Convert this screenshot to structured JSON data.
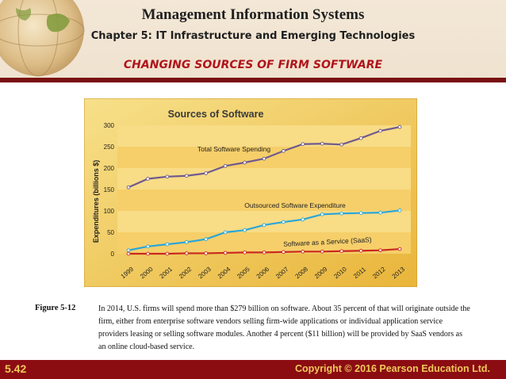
{
  "header": {
    "title": "Management Information Systems",
    "subtitle": "Chapter 5: IT Infrastructure and Emerging Technologies",
    "section_title": "CHANGING SOURCES OF FIRM SOFTWARE"
  },
  "colors": {
    "header_bg": "#f3e7d6",
    "accent_red": "#b0141a",
    "footer_bg": "#8b0d12",
    "footer_text": "#f0c95a",
    "total_line": "#6f5a8f",
    "outsourced_line": "#2aa6d8",
    "saas_line": "#c8281e"
  },
  "chart_data": {
    "type": "line",
    "title": "Sources of Software",
    "ylabel": "Expenditures (billions $)",
    "xlabel": "",
    "ylim": [
      0,
      300
    ],
    "yticks": [
      0,
      50,
      100,
      150,
      200,
      250,
      300
    ],
    "categories": [
      "1999",
      "2000",
      "2001",
      "2002",
      "2003",
      "2004",
      "2005",
      "2006",
      "2007",
      "2008",
      "2009",
      "2010",
      "2011",
      "2012",
      "2013"
    ],
    "series": [
      {
        "name": "Total Software Spending",
        "color": "#6f5a8f",
        "values": [
          155,
          175,
          180,
          182,
          188,
          205,
          213,
          222,
          240,
          256,
          257,
          255,
          270,
          287,
          296
        ]
      },
      {
        "name": "Outsourced Software Expenditure",
        "color": "#2aa6d8",
        "values": [
          8,
          17,
          22,
          27,
          34,
          50,
          55,
          67,
          74,
          80,
          92,
          94,
          95,
          96,
          101
        ]
      },
      {
        "name": "Software as a Service (SaaS)",
        "color": "#c8281e",
        "values": [
          0,
          0,
          0,
          1,
          1,
          2,
          3,
          3,
          4,
          5,
          5,
          6,
          7,
          8,
          11
        ]
      }
    ],
    "grid": false
  },
  "caption": {
    "label": "Figure 5-12",
    "text": "In 2014, U.S. firms will spend more than $279 billion on software. About 35 percent of that will originate outside the firm, either from enterprise software vendors selling firm-wide applications or individual application service providers leasing or selling software modules. Another 4 percent ($11 billion) will be provided by SaaS vendors as an online cloud-based service."
  },
  "footer": {
    "slide_number": "5.42",
    "copyright": "Copyright © 2016 Pearson Education Ltd."
  }
}
